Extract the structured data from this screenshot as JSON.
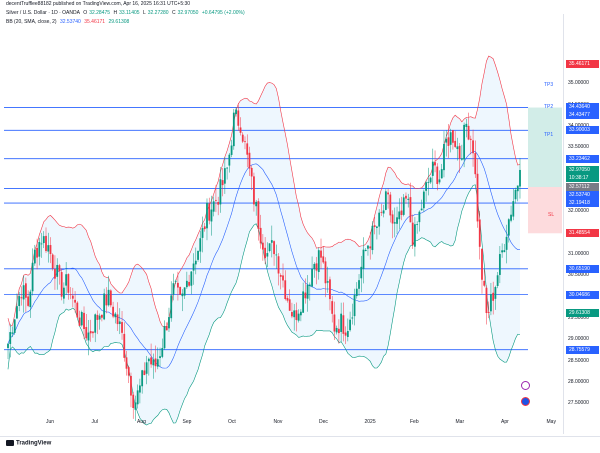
{
  "header": {
    "published": "decentTrufflee88182 published on TradingView.com, Apr 16, 2025 16:31 UTC+5:30",
    "symbol": "Silver / U.S. Dollar · 1D · OANDA",
    "ohlc": {
      "o_label": "O",
      "o": "32.28475",
      "h_label": "H",
      "h": "33.11405",
      "l_label": "L",
      "l": "32.27280",
      "c_label": "C",
      "c": "32.97050",
      "chg": "+0.64795 (+2.00%)"
    },
    "indicator": {
      "name": "BB (20, SMA, close, 2)",
      "basis": "32.53740",
      "upper": "35.46171",
      "lower": "29.61308"
    }
  },
  "price_axis": {
    "ticks": [
      "35.00000",
      "34.50000",
      "34.00000",
      "33.50000",
      "33.00000",
      "32.50000",
      "32.00000",
      "31.50000",
      "31.00000",
      "30.50000",
      "30.00000",
      "29.50000",
      "29.00000",
      "28.50000",
      "28.00000",
      "27.50000"
    ],
    "labels": [
      {
        "text": "35.46171",
        "color": "#f23645"
      },
      {
        "text": "34.43640",
        "color": "#2962ff"
      },
      {
        "text": "34.43477",
        "color": "#2962ff"
      },
      {
        "text": "33.90003",
        "color": "#2962ff"
      },
      {
        "text": "33.23462",
        "color": "#2962ff"
      },
      {
        "text": "32.97050",
        "color": "#089981"
      },
      {
        "text": "10:38:17",
        "color": "#089981"
      },
      {
        "text": "32.57112",
        "color": "#787b86"
      },
      {
        "text": "32.53740",
        "color": "#2962ff"
      },
      {
        "text": "32.19418",
        "color": "#2962ff"
      },
      {
        "text": "31.48554",
        "color": "#f23645"
      },
      {
        "text": "30.65190",
        "color": "#2962ff"
      },
      {
        "text": "30.04686",
        "color": "#2962ff"
      },
      {
        "text": "29.61308",
        "color": "#089981"
      },
      {
        "text": "28.75579",
        "color": "#2962ff"
      }
    ]
  },
  "time_axis": [
    "Jun",
    "Jul",
    "Aug",
    "Sep",
    "Oct",
    "Nov",
    "Dec",
    "2025",
    "Feb",
    "Mar",
    "Apr",
    "May"
  ],
  "zones": {
    "tp1": "TP1",
    "tp2": "TP2",
    "tp3": "TP3",
    "sl": "SL"
  },
  "footer": {
    "brand": "TradingView"
  },
  "colors": {
    "up": "#089981",
    "down": "#f23645",
    "bb_upper": "#f23645",
    "bb_lower": "#089981",
    "bb_basis": "#2962ff",
    "hline": "#2962ff",
    "bb_fill": "#2196f3"
  },
  "chart_data": {
    "type": "candlestick",
    "symbol": "XAGUSD",
    "timeframe": "1D",
    "ylim": [
      27.2,
      36.3
    ],
    "months": [
      "Jun",
      "Jul",
      "Aug",
      "Sep",
      "Oct",
      "Nov",
      "Dec",
      "2025",
      "Feb",
      "Mar",
      "Apr",
      "May"
    ],
    "horizontal_levels": [
      34.4364,
      33.90003,
      33.23462,
      32.5374,
      32.19418,
      30.6519,
      30.04686,
      28.75579
    ],
    "bollinger": {
      "period": 20,
      "std": 2,
      "basis_last": 32.5374,
      "upper_last": 35.46171,
      "lower_last": 29.61308
    },
    "trade_zones": {
      "tp1": 33.23462,
      "tp2": 33.90003,
      "tp3": 34.43477,
      "entry": 32.57112,
      "sl": 31.48554
    },
    "close_path": [
      28.9,
      29.6,
      30.2,
      29.8,
      31.0,
      31.4,
      31.2,
      30.7,
      30.2,
      30.3,
      29.8,
      29.4,
      29.1,
      29.4,
      29.7,
      30.0,
      29.6,
      29.2,
      28.3,
      27.5,
      27.9,
      28.6,
      28.3,
      28.8,
      29.5,
      30.2,
      29.8,
      30.4,
      30.9,
      31.3,
      32.0,
      32.2,
      32.5,
      33.0,
      34.2,
      34.1,
      33.2,
      32.3,
      31.5,
      31.0,
      31.2,
      30.6,
      30.0,
      29.5,
      29.9,
      30.3,
      30.8,
      31.0,
      30.2,
      29.3,
      29.4,
      29.3,
      29.9,
      30.6,
      31.2,
      31.5,
      31.8,
      32.3,
      31.6,
      31.8,
      32.3,
      31.3,
      32.0,
      32.6,
      33.0,
      32.8,
      33.7,
      33.8,
      33.3,
      34.1,
      33.5,
      30.9,
      29.5,
      30.1,
      30.8,
      31.6,
      32.3,
      32.9
    ],
    "last": {
      "o": 32.28475,
      "h": 33.11405,
      "l": 32.2728,
      "c": 32.9705
    }
  }
}
